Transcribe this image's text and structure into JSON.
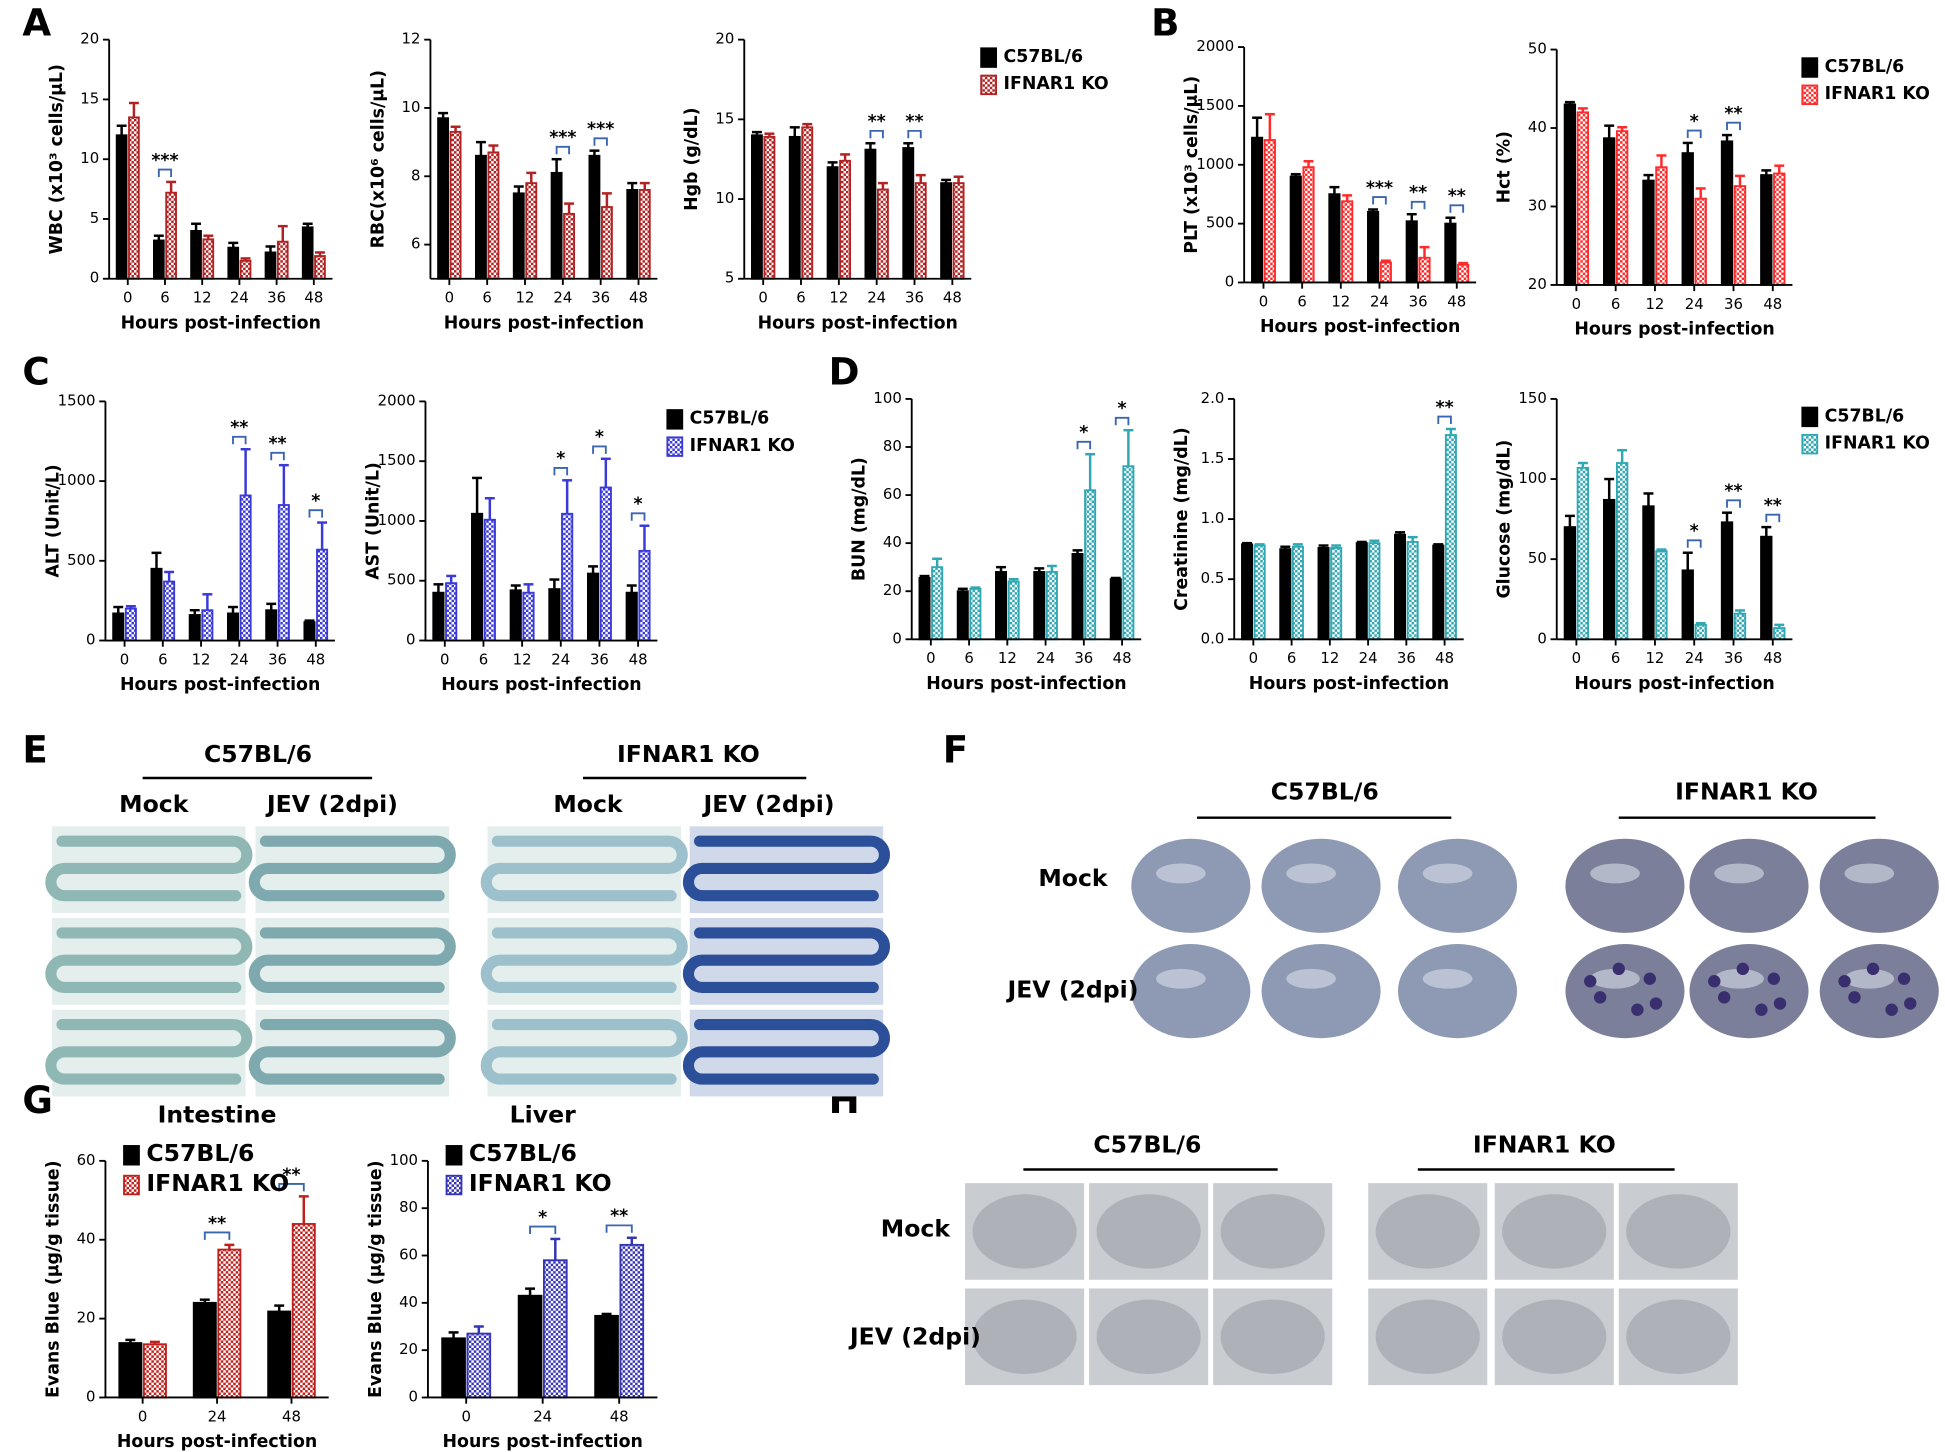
{
  "chart_data": [
    {
      "type": "bar",
      "ylabel": "WBC (x10³ cells/μL)",
      "xlabel": "Hours post-infection",
      "categories": [
        "0",
        "6",
        "12",
        "24",
        "36",
        "48"
      ],
      "ylim": [
        0,
        20
      ],
      "yticks": [
        0,
        5,
        10,
        15,
        20
      ],
      "series": [
        {
          "color": "#000000",
          "values": [
            12,
            3.2,
            4,
            2.6,
            2.2,
            4.3
          ],
          "errors": [
            0.8,
            0.4,
            0.6,
            0.4,
            0.5,
            0.3
          ]
        },
        {
          "color": "#b22222",
          "hatch": true,
          "values": [
            13.5,
            7.2,
            3.3,
            1.5,
            3.1,
            1.9
          ],
          "errors": [
            1.2,
            0.9,
            0.3,
            0.2,
            1.3,
            0.3
          ]
        }
      ],
      "significance": [
        null,
        "***",
        null,
        null,
        null,
        null
      ]
    },
    {
      "type": "bar",
      "ylabel": "RBC(x10⁶ cells/μL)",
      "xlabel": "Hours post-infection",
      "categories": [
        "0",
        "6",
        "12",
        "24",
        "36",
        "48"
      ],
      "ylim": [
        5,
        12
      ],
      "yticks": [
        6,
        8,
        10,
        12
      ],
      "series": [
        {
          "color": "#000000",
          "values": [
            9.7,
            8.6,
            7.5,
            8.1,
            8.6,
            7.6
          ],
          "errors": [
            0.15,
            0.4,
            0.2,
            0.4,
            0.15,
            0.2
          ]
        },
        {
          "color": "#b22222",
          "hatch": true,
          "values": [
            9.3,
            8.7,
            7.8,
            6.9,
            7.1,
            7.6
          ],
          "errors": [
            0.15,
            0.2,
            0.3,
            0.3,
            0.4,
            0.2
          ]
        }
      ],
      "significance": [
        null,
        null,
        null,
        "***",
        "***",
        null
      ]
    },
    {
      "type": "bar",
      "ylabel": "Hgb (g/dL)",
      "xlabel": "Hours post-infection",
      "categories": [
        "0",
        "6",
        "12",
        "24",
        "36",
        "48"
      ],
      "ylim": [
        5,
        20
      ],
      "yticks": [
        5,
        10,
        15,
        20
      ],
      "legend": "outside-right",
      "series": [
        {
          "name": "C57BL/6",
          "color": "#000000",
          "values": [
            14,
            13.9,
            12,
            13.1,
            13.2,
            11
          ],
          "errors": [
            0.2,
            0.6,
            0.3,
            0.4,
            0.3,
            0.2
          ]
        },
        {
          "name": "IFNAR1 KO",
          "color": "#b22222",
          "hatch": true,
          "values": [
            13.9,
            14.5,
            12.4,
            10.6,
            11,
            11
          ],
          "errors": [
            0.2,
            0.2,
            0.4,
            0.4,
            0.5,
            0.4
          ]
        }
      ],
      "significance": [
        null,
        null,
        null,
        "**",
        "**",
        null
      ]
    },
    {
      "type": "bar",
      "ylabel": "PLT (x10³ cells/μL)",
      "xlabel": "Hours post-infection",
      "categories": [
        "0",
        "6",
        "12",
        "24",
        "36",
        "48"
      ],
      "ylim": [
        0,
        2000
      ],
      "yticks": [
        0,
        500,
        1000,
        1500,
        2000
      ],
      "series": [
        {
          "color": "#000000",
          "values": [
            1230,
            900,
            750,
            600,
            520,
            500
          ],
          "errors": [
            170,
            20,
            60,
            20,
            60,
            50
          ]
        },
        {
          "color": "#ff2a2a",
          "hatch": true,
          "values": [
            1210,
            980,
            690,
            170,
            210,
            150
          ],
          "errors": [
            220,
            50,
            50,
            15,
            90,
            15
          ]
        }
      ],
      "significance": [
        null,
        null,
        null,
        "***",
        "**",
        "**"
      ]
    },
    {
      "type": "bar",
      "ylabel": "Hct (%)",
      "xlabel": "Hours post-infection",
      "categories": [
        "0",
        "6",
        "12",
        "24",
        "36",
        "48"
      ],
      "ylim": [
        20,
        50
      ],
      "yticks": [
        20,
        30,
        40,
        50
      ],
      "legend": "outside-right",
      "series": [
        {
          "name": "C57BL/6",
          "color": "#000000",
          "values": [
            43,
            38.7,
            33.3,
            36.8,
            38.3,
            34
          ],
          "errors": [
            0.3,
            1.6,
            0.7,
            1.3,
            0.8,
            0.6
          ]
        },
        {
          "name": "IFNAR1 KO",
          "color": "#ff2a2a",
          "hatch": true,
          "values": [
            42,
            39.6,
            35,
            31,
            32.6,
            34.2
          ],
          "errors": [
            0.5,
            0.5,
            1.5,
            1.3,
            1.3,
            1
          ]
        }
      ],
      "significance": [
        null,
        null,
        null,
        "*",
        "**",
        null
      ]
    },
    {
      "type": "bar",
      "ylabel": "ALT (Unit/L)",
      "xlabel": "Hours post-infection",
      "categories": [
        "0",
        "6",
        "12",
        "24",
        "36",
        "48"
      ],
      "ylim": [
        0,
        1500
      ],
      "yticks": [
        0,
        500,
        1000,
        1500
      ],
      "series": [
        {
          "color": "#000000",
          "values": [
            170,
            450,
            160,
            170,
            190,
            115
          ],
          "errors": [
            40,
            100,
            30,
            40,
            40,
            10
          ]
        },
        {
          "color": "#3a3ad8",
          "hatch": true,
          "values": [
            200,
            370,
            190,
            910,
            850,
            570
          ],
          "errors": [
            15,
            60,
            100,
            290,
            250,
            170
          ]
        }
      ],
      "significance": [
        null,
        null,
        null,
        "**",
        "**",
        "*"
      ]
    },
    {
      "type": "bar",
      "ylabel": "AST (Unit/L)",
      "xlabel": "Hours post-infection",
      "categories": [
        "0",
        "6",
        "12",
        "24",
        "36",
        "48"
      ],
      "ylim": [
        0,
        2000
      ],
      "yticks": [
        0,
        500,
        1000,
        1500,
        2000
      ],
      "legend": "outside-right",
      "series": [
        {
          "name": "C57BL/6",
          "color": "#000000",
          "values": [
            400,
            1060,
            420,
            430,
            560,
            400
          ],
          "errors": [
            70,
            300,
            40,
            80,
            60,
            60
          ]
        },
        {
          "name": "IFNAR1 KO",
          "color": "#3a3ad8",
          "hatch": true,
          "values": [
            480,
            1010,
            400,
            1060,
            1280,
            750
          ],
          "errors": [
            60,
            180,
            70,
            280,
            240,
            210
          ]
        }
      ],
      "significance": [
        null,
        null,
        null,
        "*",
        "*",
        "*"
      ]
    },
    {
      "type": "bar",
      "ylabel": "BUN (mg/dL)",
      "xlabel": "Hours post-infection",
      "categories": [
        "0",
        "6",
        "12",
        "24",
        "36",
        "48"
      ],
      "ylim": [
        0,
        100
      ],
      "yticks": [
        0,
        20,
        40,
        60,
        80,
        100
      ],
      "series": [
        {
          "color": "#000000",
          "values": [
            25.5,
            20,
            28,
            28,
            35.5,
            25
          ],
          "errors": [
            0.8,
            1,
            2,
            1.5,
            1.5,
            0.5
          ]
        },
        {
          "color": "#2fa8b4",
          "hatch": true,
          "values": [
            30,
            21,
            24,
            28,
            62,
            72
          ],
          "errors": [
            3.5,
            0.5,
            1,
            2.5,
            15,
            15
          ]
        }
      ],
      "significance": [
        null,
        null,
        null,
        null,
        "*",
        "*"
      ]
    },
    {
      "type": "bar",
      "ylabel": "Creatinine (mg/dL)",
      "xlabel": "Hours post-infection",
      "categories": [
        "0",
        "6",
        "12",
        "24",
        "36",
        "48"
      ],
      "ylim": [
        0,
        2
      ],
      "yticks": [
        {
          "value": 0,
          "label": "0.0"
        },
        0.5,
        {
          "value": 1,
          "label": "1.0"
        },
        1.5,
        {
          "value": 2,
          "label": "2.0"
        }
      ],
      "series": [
        {
          "color": "#000000",
          "values": [
            0.79,
            0.75,
            0.76,
            0.8,
            0.87,
            0.78
          ],
          "errors": [
            0.01,
            0.02,
            0.02,
            0.01,
            0.02,
            0.01
          ]
        },
        {
          "color": "#2fa8b4",
          "hatch": true,
          "values": [
            0.78,
            0.77,
            0.76,
            0.8,
            0.81,
            1.7
          ],
          "errors": [
            0.01,
            0.02,
            0.02,
            0.02,
            0.04,
            0.05
          ]
        }
      ],
      "significance": [
        null,
        null,
        null,
        null,
        null,
        "**"
      ]
    },
    {
      "type": "bar",
      "ylabel": "Glucose (mg/dL)",
      "xlabel": "Hours post-infection",
      "categories": [
        "0",
        "6",
        "12",
        "24",
        "36",
        "48"
      ],
      "ylim": [
        0,
        150
      ],
      "yticks": [
        0,
        50,
        100,
        150
      ],
      "legend": "outside-right",
      "series": [
        {
          "name": "C57BL/6",
          "color": "#000000",
          "values": [
            70,
            87,
            83,
            43,
            73,
            64
          ],
          "errors": [
            7,
            13,
            8,
            11,
            6,
            6
          ]
        },
        {
          "name": "IFNAR1 KO",
          "color": "#2fa8b4",
          "hatch": true,
          "values": [
            107,
            110,
            55,
            9,
            16,
            7
          ],
          "errors": [
            3,
            8,
            1,
            1,
            2,
            2
          ]
        }
      ],
      "significance": [
        null,
        null,
        null,
        "*",
        "**",
        "**"
      ]
    },
    {
      "type": "bar",
      "title": "Intestine",
      "ylabel": "Evans Blue (μg/g tissue)",
      "xlabel": "Hours post-infection",
      "categories": [
        "0",
        "24",
        "48"
      ],
      "ylim": [
        0,
        60
      ],
      "yticks": [
        0,
        20,
        40,
        60
      ],
      "legend": "upper-left",
      "series": [
        {
          "name": "C57BL/6",
          "color": "#000000",
          "values": [
            13.8,
            24,
            21.8
          ],
          "errors": [
            0.8,
            0.8,
            1.5
          ]
        },
        {
          "name": "IFNAR1 KO",
          "color": "#c0201c",
          "hatch": true,
          "values": [
            13.5,
            37.5,
            44
          ],
          "errors": [
            0.6,
            1.2,
            7
          ]
        }
      ],
      "significance": [
        null,
        "**",
        "**"
      ]
    },
    {
      "type": "bar",
      "title": "Liver",
      "ylabel": "Evans Blue (μg/g tissue)",
      "xlabel": "Hours post-infection",
      "categories": [
        "0",
        "24",
        "48"
      ],
      "ylim": [
        0,
        100
      ],
      "yticks": [
        0,
        20,
        40,
        60,
        80,
        100
      ],
      "legend": "upper-left",
      "series": [
        {
          "name": "C57BL/6",
          "color": "#000000",
          "values": [
            25,
            43,
            34.5
          ],
          "errors": [
            2.5,
            3,
            0.8
          ]
        },
        {
          "name": "IFNAR1 KO",
          "color": "#3434b4",
          "hatch": true,
          "values": [
            27,
            58,
            64.5
          ],
          "errors": [
            3,
            9,
            3
          ]
        }
      ],
      "significance": [
        null,
        "*",
        "**"
      ]
    }
  ],
  "panel_letters": [
    "A",
    "B",
    "C",
    "D",
    "E",
    "F",
    "G",
    "H"
  ],
  "panel_E": {
    "groups": [
      {
        "name": "C57BL/6",
        "columns": [
          "Mock",
          "JEV (2dpi)"
        ]
      },
      {
        "name": "IFNAR1 KO",
        "columns": [
          "Mock",
          "JEV (2dpi)"
        ]
      }
    ]
  },
  "panel_F": {
    "groups": [
      "C57BL/6",
      "IFNAR1 KO"
    ],
    "rows": [
      "Mock",
      "JEV (2dpi)"
    ]
  },
  "panel_H": {
    "groups": [
      "C57BL/6",
      "IFNAR1 KO"
    ],
    "rows": [
      "Mock",
      "JEV (2dpi)"
    ]
  }
}
